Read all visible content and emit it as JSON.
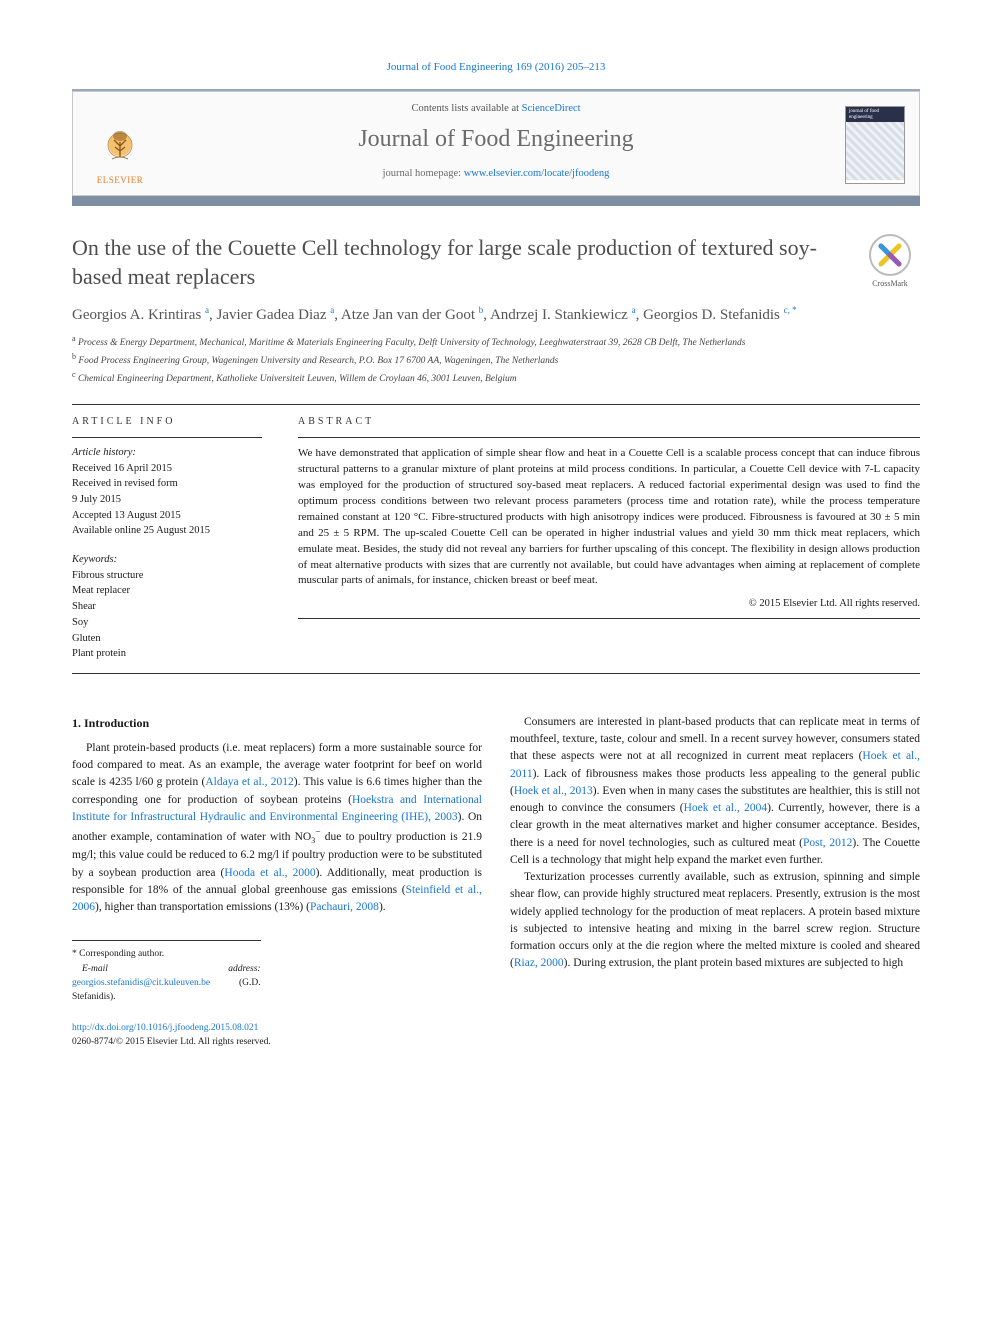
{
  "colors": {
    "link": "#1976d2",
    "bar_light": "#9aa9b8",
    "bar_dark": "#7e8fa4",
    "title_gray": "#4e4e4e",
    "text": "#1a1a1a",
    "muted": "#555555",
    "elsevier_orange": "#e67e22"
  },
  "typography": {
    "body_family": "Georgia, 'Times New Roman', serif",
    "title_fontsize_pt": 16,
    "journal_name_fontsize_pt": 18,
    "body_fontsize_pt": 9,
    "abstract_fontsize_pt": 8.5
  },
  "header": {
    "citation_prefix": "Journal of Food Engineering 169 (2016) 205–213",
    "contents_prefix": "Contents lists available at ",
    "contents_link": "ScienceDirect",
    "journal_name": "Journal of Food Engineering",
    "homepage_prefix": "journal homepage: ",
    "homepage_link": "www.elsevier.com/locate/jfoodeng",
    "publisher_logo_text": "ELSEVIER",
    "cover_thumb_title": "journal of food engineering"
  },
  "crossmark": {
    "label": "CrossMark"
  },
  "article": {
    "title": "On the use of the Couette Cell technology for large scale production of textured soy-based meat replacers",
    "authors_html": "Georgios A. Krintiras <sup>a</sup>, Javier Gadea Diaz <sup>a</sup>, Atze Jan van der Goot <sup>b</sup>, Andrzej I. Stankiewicz <sup>a</sup>, Georgios D. Stefanidis <sup>c, *</sup>",
    "affiliations": [
      "a  Process & Energy Department, Mechanical, Maritime & Materials Engineering Faculty, Delft University of Technology, Leeghwaterstraat 39, 2628 CB Delft, The Netherlands",
      "b  Food Process Engineering Group, Wageningen University and Research, P.O. Box 17 6700 AA, Wageningen, The Netherlands",
      "c  Chemical Engineering Department, Katholieke Universiteit Leuven, Willem de Croylaan 46, 3001 Leuven, Belgium"
    ]
  },
  "article_info": {
    "heading": "ARTICLE INFO",
    "history_label": "Article history:",
    "history": [
      "Received 16 April 2015",
      "Received in revised form",
      "9 July 2015",
      "Accepted 13 August 2015",
      "Available online 25 August 2015"
    ],
    "keywords_label": "Keywords:",
    "keywords": [
      "Fibrous structure",
      "Meat replacer",
      "Shear",
      "Soy",
      "Gluten",
      "Plant protein"
    ]
  },
  "abstract": {
    "heading": "ABSTRACT",
    "text": "We have demonstrated that application of simple shear flow and heat in a Couette Cell is a scalable process concept that can induce fibrous structural patterns to a granular mixture of plant proteins at mild process conditions. In particular, a Couette Cell device with 7-L capacity was employed for the production of structured soy-based meat replacers. A reduced factorial experimental design was used to find the optimum process conditions between two relevant process parameters (process time and rotation rate), while the process temperature remained constant at 120 °C. Fibre-structured products with high anisotropy indices were produced. Fibrousness is favoured at 30 ± 5 min and 25 ± 5 RPM. The up-scaled Couette Cell can be operated in higher industrial values and yield 30 mm thick meat replacers, which emulate meat. Besides, the study did not reveal any barriers for further upscaling of this concept. The flexibility in design allows production of meat alternative products with sizes that are currently not available, but could have advantages when aiming at replacement of complete muscular parts of animals, for instance, chicken breast or beef meat.",
    "copyright": "© 2015 Elsevier Ltd. All rights reserved."
  },
  "body": {
    "section_number": "1.",
    "section_title": "Introduction",
    "col1_p1_a": "Plant protein-based products (i.e. meat replacers) form a more sustainable source for food compared to meat. As an example, the average water footprint for beef on world scale is 4235 l/60 g protein (",
    "col1_ref1": "Aldaya et al., 2012",
    "col1_p1_b": "). This value is 6.6 times higher than the corresponding one for production of soybean proteins (",
    "col1_ref2": "Hoekstra and International Institute for Infrastructural Hydraulic and Environmental Engineering (IHE), 2003",
    "col1_p1_c": "). On another example, contamination of water with NO",
    "col1_no3_sub": "3",
    "col1_no3_sup": "−",
    "col1_p1_d": " due to poultry production is 21.9 mg/l; this value could be reduced to 6.2 mg/l if poultry production were to be substituted by a soybean production area (",
    "col1_ref3": "Hooda et al., 2000",
    "col1_p1_e": "). Additionally, meat production is responsible for 18% of the annual global greenhouse gas emissions (",
    "col1_ref4": "Steinfield et al., 2006",
    "col1_p1_f": "), higher than transportation emissions (13%) (",
    "col1_ref5": "Pachauri, 2008",
    "col1_p1_g": ").",
    "col2_p1_a": "Consumers are interested in plant-based products that can replicate meat in terms of mouthfeel, texture, taste, colour and smell. In a recent survey however, consumers stated that these aspects were not at all recognized in current meat replacers (",
    "col2_ref1": "Hoek et al., 2011",
    "col2_p1_b": "). Lack of fibrousness makes those products less appealing to the general public (",
    "col2_ref2": "Hoek et al., 2013",
    "col2_p1_c": "). Even when in many cases the substitutes are healthier, this is still not enough to convince the consumers (",
    "col2_ref3": "Hoek et al., 2004",
    "col2_p1_d": "). Currently, however, there is a clear growth in the meat alternatives market and higher consumer acceptance. Besides, there is a need for novel technologies, such as cultured meat (",
    "col2_ref4": "Post, 2012",
    "col2_p1_e": "). The Couette Cell is a technology that might help expand the market even further.",
    "col2_p2_a": "Texturization processes currently available, such as extrusion, spinning and simple shear flow, can provide highly structured meat replacers. Presently, extrusion is the most widely applied technology for the production of meat replacers. A protein based mixture is subjected to intensive heating and mixing in the barrel screw region. Structure formation occurs only at the die region where the melted mixture is cooled and sheared (",
    "col2_ref5": "Riaz, 2000",
    "col2_p2_b": "). During extrusion, the plant protein based mixtures are subjected to high"
  },
  "footnotes": {
    "corresponding": "* Corresponding author.",
    "email_label": "E-mail address: ",
    "email": "georgios.stefanidis@cit.kuleuven.be",
    "email_suffix": " (G.D. Stefanidis)."
  },
  "bottom": {
    "doi": "http://dx.doi.org/10.1016/j.jfoodeng.2015.08.021",
    "issn_line": "0260-8774/© 2015 Elsevier Ltd. All rights reserved."
  }
}
